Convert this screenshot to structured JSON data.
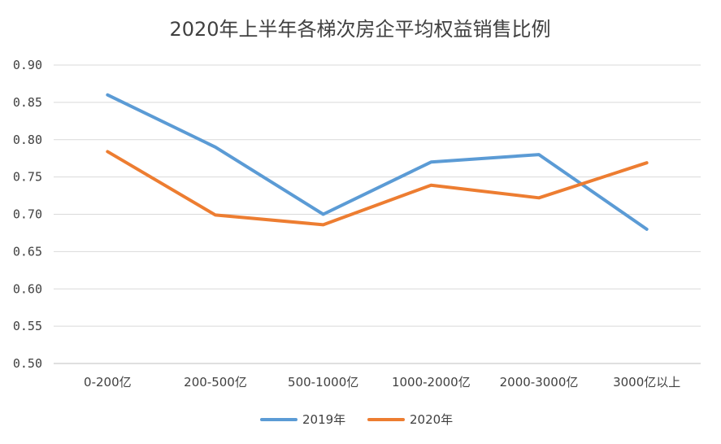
{
  "chart_data": {
    "type": "line",
    "title": "2020年上半年各梯次房企平均权益销售比例",
    "xlabel": "",
    "ylabel": "",
    "categories": [
      "0-200亿",
      "200-500亿",
      "500-1000亿",
      "1000-2000亿",
      "2000-3000亿",
      "3000亿以上"
    ],
    "ylim": [
      0.5,
      0.9
    ],
    "yticks": [
      "0.50",
      "0.55",
      "0.60",
      "0.65",
      "0.70",
      "0.75",
      "0.80",
      "0.85",
      "0.90"
    ],
    "grid": true,
    "legend_position": "bottom",
    "series": [
      {
        "name": "2019年",
        "color": "#5b9bd5",
        "values": [
          0.86,
          0.79,
          0.7,
          0.77,
          0.78,
          0.68
        ]
      },
      {
        "name": "2020年",
        "color": "#ed7d31",
        "values": [
          0.784,
          0.699,
          0.686,
          0.739,
          0.722,
          0.769
        ]
      }
    ]
  }
}
